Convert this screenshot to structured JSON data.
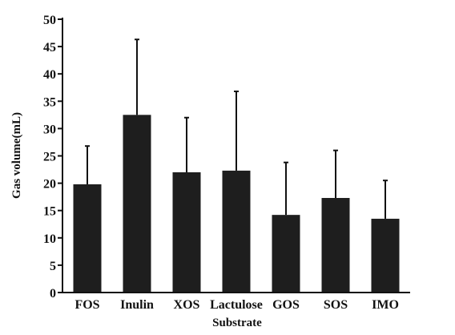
{
  "chart_data": {
    "type": "bar",
    "xlabel": "Substrate",
    "ylabel": "Gas volume(mL)",
    "categories": [
      "FOS",
      "Inulin",
      "XOS",
      "Lactulose",
      "GOS",
      "SOS",
      "IMO"
    ],
    "values": [
      19.8,
      32.5,
      22.0,
      22.3,
      14.2,
      17.3,
      13.5
    ],
    "error_upper": [
      26.8,
      46.3,
      32.0,
      36.8,
      23.8,
      26.0,
      20.5
    ],
    "ylim": [
      0,
      50
    ],
    "yticks": [
      0,
      5,
      10,
      15,
      20,
      25,
      30,
      35,
      40,
      45,
      50
    ],
    "grid": false,
    "legend": "none",
    "bar_color": "#1e1e1e"
  }
}
